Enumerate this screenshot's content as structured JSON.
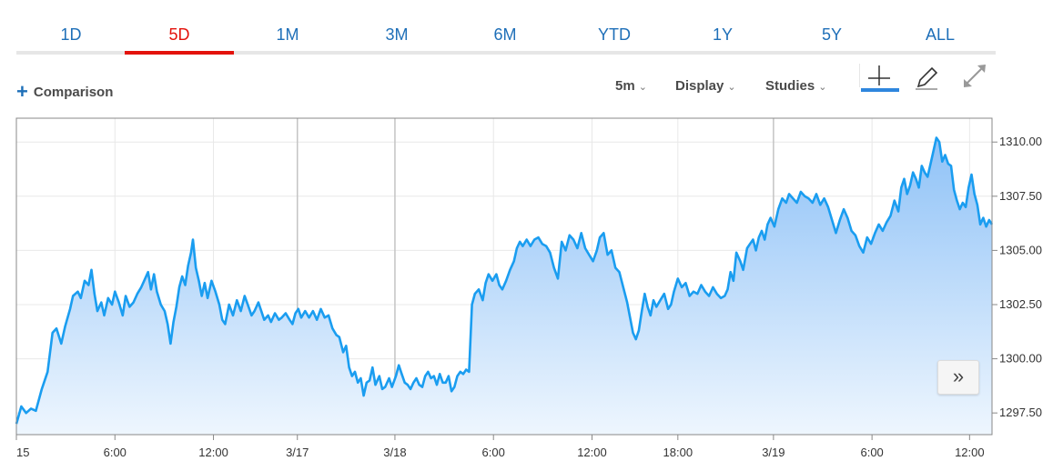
{
  "tabs": [
    {
      "label": "1D",
      "active": false
    },
    {
      "label": "5D",
      "active": true
    },
    {
      "label": "1M",
      "active": false
    },
    {
      "label": "3M",
      "active": false
    },
    {
      "label": "6M",
      "active": false
    },
    {
      "label": "YTD",
      "active": false
    },
    {
      "label": "1Y",
      "active": false
    },
    {
      "label": "5Y",
      "active": false
    },
    {
      "label": "ALL",
      "active": false
    }
  ],
  "toolbar": {
    "comparison_label": "Comparison",
    "interval_label": "5m",
    "display_label": "Display",
    "studies_label": "Studies",
    "icons": [
      "crosshair-icon",
      "pencil-icon",
      "expand-icon"
    ]
  },
  "scroll_button": {
    "icon": "double-chevron-right-icon",
    "glyph": "»"
  },
  "chart_data": {
    "type": "area",
    "line_color": "#1a9df0",
    "fill_top_color": "#8fc2f7",
    "fill_bottom_color": "#eef6fe",
    "ylim": [
      1296.5,
      1311.1
    ],
    "xlim": [
      0,
      1000
    ],
    "y_ticks": [
      {
        "label": "1310.00",
        "value": 1310.0
      },
      {
        "label": "1307.50",
        "value": 1307.5
      },
      {
        "label": "1305.00",
        "value": 1305.0
      },
      {
        "label": "1302.50",
        "value": 1302.5
      },
      {
        "label": "1300.00",
        "value": 1300.0
      },
      {
        "label": "1297.50",
        "value": 1297.5
      }
    ],
    "x_ticks": [
      {
        "label": "15",
        "x": 0
      },
      {
        "label": "6:00",
        "x": 101
      },
      {
        "label": "12:00",
        "x": 202
      },
      {
        "label": "3/17",
        "x": 288
      },
      {
        "label": "3/18",
        "x": 388
      },
      {
        "label": "6:00",
        "x": 489
      },
      {
        "label": "12:00",
        "x": 590
      },
      {
        "label": "18:00",
        "x": 678
      },
      {
        "label": "3/19",
        "x": 776
      },
      {
        "label": "6:00",
        "x": 877
      },
      {
        "label": "12:00",
        "x": 977
      }
    ],
    "day_separators": [
      288,
      388,
      776
    ],
    "points": [
      [
        0,
        1297.0
      ],
      [
        5,
        1297.8
      ],
      [
        10,
        1297.5
      ],
      [
        15,
        1297.7
      ],
      [
        20,
        1297.6
      ],
      [
        26,
        1298.6
      ],
      [
        32,
        1299.4
      ],
      [
        37,
        1301.2
      ],
      [
        41,
        1301.4
      ],
      [
        46,
        1300.7
      ],
      [
        50,
        1301.5
      ],
      [
        55,
        1302.3
      ],
      [
        58,
        1302.9
      ],
      [
        63,
        1303.1
      ],
      [
        66,
        1302.8
      ],
      [
        70,
        1303.6
      ],
      [
        74,
        1303.4
      ],
      [
        77,
        1304.1
      ],
      [
        80,
        1303.0
      ],
      [
        83,
        1302.2
      ],
      [
        87,
        1302.6
      ],
      [
        90,
        1302.0
      ],
      [
        94,
        1302.8
      ],
      [
        98,
        1302.5
      ],
      [
        101,
        1303.1
      ],
      [
        105,
        1302.6
      ],
      [
        109,
        1302.0
      ],
      [
        112,
        1302.9
      ],
      [
        116,
        1302.4
      ],
      [
        120,
        1302.6
      ],
      [
        124,
        1303.0
      ],
      [
        128,
        1303.3
      ],
      [
        131,
        1303.6
      ],
      [
        135,
        1304.0
      ],
      [
        138,
        1303.2
      ],
      [
        141,
        1303.9
      ],
      [
        144,
        1303.1
      ],
      [
        148,
        1302.5
      ],
      [
        152,
        1302.2
      ],
      [
        155,
        1301.6
      ],
      [
        158,
        1300.7
      ],
      [
        161,
        1301.7
      ],
      [
        164,
        1302.4
      ],
      [
        167,
        1303.3
      ],
      [
        170,
        1303.8
      ],
      [
        173,
        1303.4
      ],
      [
        176,
        1304.3
      ],
      [
        179,
        1304.9
      ],
      [
        181,
        1305.5
      ],
      [
        184,
        1304.2
      ],
      [
        187,
        1303.6
      ],
      [
        190,
        1302.9
      ],
      [
        193,
        1303.5
      ],
      [
        196,
        1302.8
      ],
      [
        200,
        1303.6
      ],
      [
        204,
        1303.1
      ],
      [
        208,
        1302.5
      ],
      [
        211,
        1301.8
      ],
      [
        214,
        1301.6
      ],
      [
        218,
        1302.5
      ],
      [
        222,
        1302.0
      ],
      [
        226,
        1302.7
      ],
      [
        230,
        1302.2
      ],
      [
        234,
        1302.9
      ],
      [
        238,
        1302.4
      ],
      [
        241,
        1302.0
      ],
      [
        244,
        1302.2
      ],
      [
        248,
        1302.6
      ],
      [
        251,
        1302.2
      ],
      [
        254,
        1301.8
      ],
      [
        258,
        1302.0
      ],
      [
        261,
        1301.7
      ],
      [
        265,
        1302.1
      ],
      [
        269,
        1301.8
      ],
      [
        272,
        1301.9
      ],
      [
        276,
        1302.1
      ],
      [
        280,
        1301.8
      ],
      [
        283,
        1301.6
      ],
      [
        286,
        1302.1
      ],
      [
        289,
        1302.3
      ],
      [
        292,
        1301.9
      ],
      [
        296,
        1302.2
      ],
      [
        300,
        1301.9
      ],
      [
        304,
        1302.2
      ],
      [
        308,
        1301.8
      ],
      [
        312,
        1302.3
      ],
      [
        316,
        1301.9
      ],
      [
        320,
        1302.0
      ],
      [
        324,
        1301.4
      ],
      [
        328,
        1301.1
      ],
      [
        331,
        1301.0
      ],
      [
        335,
        1300.3
      ],
      [
        338,
        1300.6
      ],
      [
        341,
        1299.6
      ],
      [
        344,
        1299.2
      ],
      [
        347,
        1299.4
      ],
      [
        350,
        1298.9
      ],
      [
        353,
        1299.1
      ],
      [
        356,
        1298.3
      ],
      [
        359,
        1298.9
      ],
      [
        362,
        1299.0
      ],
      [
        365,
        1299.6
      ],
      [
        368,
        1298.8
      ],
      [
        372,
        1299.2
      ],
      [
        375,
        1298.6
      ],
      [
        378,
        1298.7
      ],
      [
        382,
        1299.1
      ],
      [
        385,
        1298.7
      ],
      [
        389,
        1299.2
      ],
      [
        392,
        1299.7
      ],
      [
        395,
        1299.3
      ],
      [
        398,
        1298.9
      ],
      [
        401,
        1298.8
      ],
      [
        404,
        1298.6
      ],
      [
        407,
        1298.9
      ],
      [
        410,
        1299.1
      ],
      [
        413,
        1298.8
      ],
      [
        416,
        1298.7
      ],
      [
        419,
        1299.2
      ],
      [
        422,
        1299.4
      ],
      [
        425,
        1299.1
      ],
      [
        428,
        1299.2
      ],
      [
        431,
        1298.8
      ],
      [
        434,
        1299.3
      ],
      [
        437,
        1298.9
      ],
      [
        440,
        1298.9
      ],
      [
        443,
        1299.2
      ],
      [
        446,
        1298.5
      ],
      [
        449,
        1298.7
      ],
      [
        452,
        1299.2
      ],
      [
        455,
        1299.4
      ],
      [
        458,
        1299.3
      ],
      [
        461,
        1299.5
      ],
      [
        464,
        1299.4
      ],
      [
        467,
        1302.5
      ],
      [
        470,
        1303.0
      ],
      [
        474,
        1303.2
      ],
      [
        478,
        1302.7
      ],
      [
        481,
        1303.5
      ],
      [
        484,
        1303.9
      ],
      [
        488,
        1303.6
      ],
      [
        492,
        1303.9
      ],
      [
        495,
        1303.4
      ],
      [
        498,
        1303.2
      ],
      [
        502,
        1303.6
      ],
      [
        506,
        1304.1
      ],
      [
        510,
        1304.5
      ],
      [
        513,
        1305.1
      ],
      [
        516,
        1305.4
      ],
      [
        519,
        1305.2
      ],
      [
        523,
        1305.5
      ],
      [
        527,
        1305.2
      ],
      [
        531,
        1305.5
      ],
      [
        535,
        1305.6
      ],
      [
        539,
        1305.3
      ],
      [
        543,
        1305.2
      ],
      [
        547,
        1304.9
      ],
      [
        551,
        1304.2
      ],
      [
        555,
        1303.7
      ],
      [
        559,
        1305.4
      ],
      [
        563,
        1305.0
      ],
      [
        567,
        1305.7
      ],
      [
        571,
        1305.5
      ],
      [
        575,
        1305.1
      ],
      [
        579,
        1305.8
      ],
      [
        583,
        1305.1
      ],
      [
        587,
        1304.8
      ],
      [
        591,
        1304.5
      ],
      [
        595,
        1305.0
      ],
      [
        598,
        1305.6
      ],
      [
        602,
        1305.8
      ],
      [
        606,
        1304.8
      ],
      [
        610,
        1305.0
      ],
      [
        614,
        1304.2
      ],
      [
        618,
        1304.0
      ],
      [
        622,
        1303.3
      ],
      [
        626,
        1302.6
      ],
      [
        629,
        1301.9
      ],
      [
        632,
        1301.2
      ],
      [
        635,
        1300.9
      ],
      [
        638,
        1301.3
      ],
      [
        641,
        1302.2
      ],
      [
        644,
        1303.0
      ],
      [
        647,
        1302.4
      ],
      [
        650,
        1302.0
      ],
      [
        653,
        1302.7
      ],
      [
        656,
        1302.4
      ],
      [
        660,
        1302.7
      ],
      [
        664,
        1303.0
      ],
      [
        668,
        1302.3
      ],
      [
        671,
        1302.5
      ],
      [
        674,
        1303.1
      ],
      [
        678,
        1303.7
      ],
      [
        682,
        1303.3
      ],
      [
        686,
        1303.5
      ],
      [
        690,
        1302.9
      ],
      [
        694,
        1303.1
      ],
      [
        698,
        1303.0
      ],
      [
        702,
        1303.4
      ],
      [
        706,
        1303.1
      ],
      [
        710,
        1302.9
      ],
      [
        714,
        1303.3
      ],
      [
        718,
        1303.0
      ],
      [
        722,
        1302.8
      ],
      [
        726,
        1302.9
      ],
      [
        729,
        1303.2
      ],
      [
        732,
        1304.0
      ],
      [
        735,
        1303.6
      ],
      [
        738,
        1304.9
      ],
      [
        742,
        1304.5
      ],
      [
        745,
        1304.1
      ],
      [
        749,
        1305.1
      ],
      [
        752,
        1305.3
      ],
      [
        755,
        1305.5
      ],
      [
        758,
        1305.0
      ],
      [
        761,
        1305.6
      ],
      [
        764,
        1305.9
      ],
      [
        767,
        1305.5
      ],
      [
        770,
        1306.2
      ],
      [
        773,
        1306.5
      ],
      [
        777,
        1306.1
      ],
      [
        781,
        1306.9
      ],
      [
        785,
        1307.4
      ],
      [
        789,
        1307.2
      ],
      [
        792,
        1307.6
      ],
      [
        796,
        1307.4
      ],
      [
        800,
        1307.2
      ],
      [
        804,
        1307.7
      ],
      [
        808,
        1307.5
      ],
      [
        812,
        1307.4
      ],
      [
        816,
        1307.2
      ],
      [
        820,
        1307.6
      ],
      [
        824,
        1307.1
      ],
      [
        828,
        1307.4
      ],
      [
        832,
        1307.0
      ],
      [
        836,
        1306.4
      ],
      [
        840,
        1305.8
      ],
      [
        844,
        1306.4
      ],
      [
        848,
        1306.9
      ],
      [
        852,
        1306.5
      ],
      [
        856,
        1305.9
      ],
      [
        860,
        1305.7
      ],
      [
        864,
        1305.2
      ],
      [
        868,
        1304.9
      ],
      [
        872,
        1305.6
      ],
      [
        876,
        1305.3
      ],
      [
        880,
        1305.8
      ],
      [
        884,
        1306.2
      ],
      [
        888,
        1305.9
      ],
      [
        892,
        1306.3
      ],
      [
        896,
        1306.6
      ],
      [
        900,
        1307.3
      ],
      [
        904,
        1306.8
      ],
      [
        907,
        1307.9
      ],
      [
        910,
        1308.3
      ],
      [
        913,
        1307.6
      ],
      [
        916,
        1308.0
      ],
      [
        919,
        1308.6
      ],
      [
        922,
        1308.3
      ],
      [
        925,
        1307.9
      ],
      [
        928,
        1308.9
      ],
      [
        931,
        1308.6
      ],
      [
        934,
        1308.4
      ],
      [
        937,
        1309.0
      ],
      [
        940,
        1309.6
      ],
      [
        943,
        1310.2
      ],
      [
        946,
        1310.0
      ],
      [
        949,
        1309.1
      ],
      [
        952,
        1309.4
      ],
      [
        955,
        1309.0
      ],
      [
        958,
        1308.9
      ],
      [
        961,
        1307.8
      ],
      [
        964,
        1307.3
      ],
      [
        967,
        1306.9
      ],
      [
        970,
        1307.2
      ],
      [
        973,
        1307.0
      ],
      [
        976,
        1307.9
      ],
      [
        979,
        1308.5
      ],
      [
        982,
        1307.6
      ],
      [
        985,
        1307.1
      ],
      [
        988,
        1306.2
      ],
      [
        991,
        1306.5
      ],
      [
        994,
        1306.1
      ],
      [
        997,
        1306.4
      ],
      [
        1000,
        1306.2
      ]
    ]
  }
}
